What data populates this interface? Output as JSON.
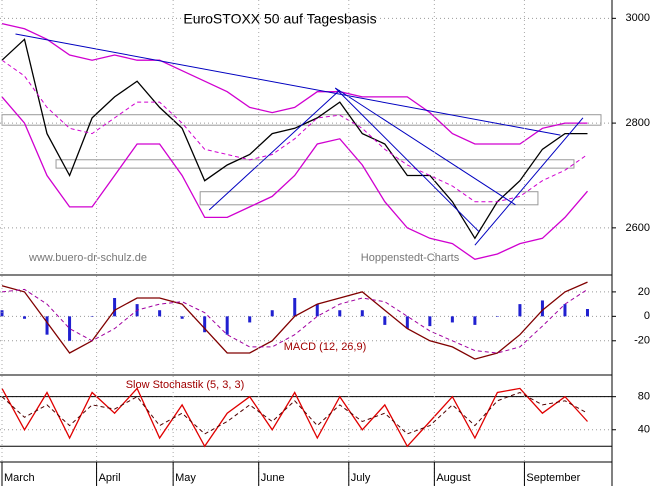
{
  "chart_data": [
    {
      "type": "line",
      "title": "EuroSTOXX 50 auf Tagesbasis",
      "annotations": [
        "www.buero-dr-schulz.de",
        "Hoppenstedt-Charts"
      ],
      "x": [
        0,
        5,
        10,
        15,
        20,
        25,
        30,
        35,
        40,
        45,
        50,
        55,
        60,
        65,
        70,
        75,
        80,
        85,
        90,
        95,
        100,
        105,
        110,
        115,
        120,
        125,
        130
      ],
      "xlim": [
        0,
        135
      ],
      "ylim": [
        2510,
        3035
      ],
      "yticks": [
        2600,
        2800,
        3000
      ],
      "grid": true,
      "series": [
        {
          "color": "#000000",
          "style": "solid",
          "values": [
            2920,
            2960,
            2780,
            2700,
            2810,
            2850,
            2880,
            2830,
            2790,
            2690,
            2720,
            2740,
            2780,
            2790,
            2810,
            2840,
            2780,
            2760,
            2700,
            2700,
            2650,
            2580,
            2650,
            2690,
            2750,
            2780,
            2780
          ]
        },
        {
          "color": "#d000d0",
          "style": "solid",
          "values": [
            2990,
            2980,
            2960,
            2930,
            2920,
            2930,
            2920,
            2920,
            2900,
            2880,
            2860,
            2830,
            2820,
            2830,
            2860,
            2860,
            2850,
            2850,
            2850,
            2820,
            2780,
            2760,
            2760,
            2760,
            2790,
            2800,
            2800
          ]
        },
        {
          "color": "#d000d0",
          "style": "dashed",
          "values": [
            2920,
            2890,
            2830,
            2790,
            2780,
            2810,
            2840,
            2840,
            2800,
            2750,
            2740,
            2730,
            2740,
            2770,
            2810,
            2815,
            2790,
            2750,
            2720,
            2700,
            2680,
            2650,
            2650,
            2660,
            2690,
            2710,
            2740
          ]
        },
        {
          "color": "#d000d0",
          "style": "solid",
          "values": [
            2850,
            2800,
            2700,
            2640,
            2640,
            2700,
            2760,
            2760,
            2700,
            2620,
            2620,
            2640,
            2660,
            2700,
            2760,
            2770,
            2720,
            2650,
            2600,
            2580,
            2570,
            2540,
            2550,
            2570,
            2580,
            2620,
            2670
          ]
        }
      ],
      "trendline_color": "#0000c0",
      "trendlines": [
        {
          "x": [
            3,
            124
          ],
          "y": [
            2970,
            2777
          ]
        },
        {
          "x": [
            74,
            106
          ],
          "y": [
            2867,
            2592
          ]
        },
        {
          "x": [
            46,
            75
          ],
          "y": [
            2634,
            2863
          ]
        },
        {
          "x": [
            105,
            129
          ],
          "y": [
            2567,
            2810
          ]
        },
        {
          "x": [
            74,
            114
          ],
          "y": [
            2867,
            2644
          ]
        }
      ],
      "zone_color": "#999999",
      "zones": [
        {
          "x": [
            0,
            133
          ],
          "y": [
            2796,
            2816
          ]
        },
        {
          "x": [
            12,
            127
          ],
          "y": [
            2714,
            2730
          ]
        },
        {
          "x": [
            44,
            119
          ],
          "y": [
            2644,
            2669
          ]
        }
      ]
    },
    {
      "type": "line",
      "title": "MACD (12, 26,9)",
      "x": [
        0,
        5,
        10,
        15,
        20,
        25,
        30,
        35,
        40,
        45,
        50,
        55,
        60,
        65,
        70,
        75,
        80,
        85,
        90,
        95,
        100,
        105,
        110,
        115,
        120,
        125,
        130
      ],
      "xlim": [
        0,
        135
      ],
      "ylim": [
        -48,
        33
      ],
      "yticks": [
        -20,
        0,
        20
      ],
      "grid": true,
      "series": [
        {
          "color": "#2020d0",
          "style": "bars",
          "values": [
            5,
            -2,
            -15,
            -20,
            0,
            15,
            10,
            5,
            -2,
            -13,
            -15,
            -5,
            5,
            15,
            10,
            5,
            5,
            -7,
            -10,
            -8,
            -5,
            -7,
            0,
            10,
            13,
            10,
            6
          ]
        },
        {
          "color": "#800000",
          "style": "solid",
          "values": [
            25,
            20,
            -5,
            -30,
            -20,
            5,
            15,
            15,
            10,
            -10,
            -30,
            -30,
            -20,
            0,
            10,
            15,
            20,
            5,
            -10,
            -20,
            -25,
            -35,
            -30,
            -15,
            5,
            20,
            28
          ]
        },
        {
          "color": "#a000a0",
          "style": "dashed",
          "values": [
            20,
            22,
            10,
            -10,
            -20,
            -10,
            5,
            10,
            12,
            3,
            -15,
            -25,
            -25,
            -15,
            0,
            10,
            15,
            12,
            0,
            -12,
            -20,
            -28,
            -30,
            -25,
            -8,
            10,
            22
          ]
        }
      ]
    },
    {
      "type": "line",
      "title": "Slow Stochastik (5, 3, 3)",
      "x": [
        0,
        5,
        10,
        15,
        20,
        25,
        30,
        35,
        40,
        45,
        50,
        55,
        60,
        65,
        70,
        75,
        80,
        85,
        90,
        95,
        100,
        105,
        110,
        115,
        120,
        125,
        130
      ],
      "xlim": [
        0,
        135
      ],
      "ylim": [
        1,
        105
      ],
      "yticks": [
        40,
        80
      ],
      "grid": true,
      "hlines": [
        20,
        80
      ],
      "xticks": [
        {
          "value": 0,
          "label": "March"
        },
        {
          "value": 21,
          "label": "April"
        },
        {
          "value": 38,
          "label": "May"
        },
        {
          "value": 57,
          "label": "June"
        },
        {
          "value": 77,
          "label": "July"
        },
        {
          "value": 96,
          "label": "August"
        },
        {
          "value": 116,
          "label": "September"
        }
      ],
      "series": [
        {
          "color": "#e00000",
          "style": "solid",
          "values": [
            90,
            40,
            85,
            30,
            85,
            60,
            90,
            30,
            70,
            20,
            60,
            80,
            40,
            85,
            30,
            80,
            40,
            70,
            20,
            50,
            80,
            30,
            85,
            90,
            60,
            80,
            50
          ]
        },
        {
          "color": "#500000",
          "style": "dashed",
          "values": [
            80,
            55,
            70,
            45,
            70,
            65,
            80,
            45,
            60,
            35,
            50,
            70,
            50,
            75,
            45,
            70,
            50,
            60,
            35,
            45,
            70,
            45,
            75,
            85,
            70,
            75,
            60
          ]
        }
      ]
    }
  ]
}
